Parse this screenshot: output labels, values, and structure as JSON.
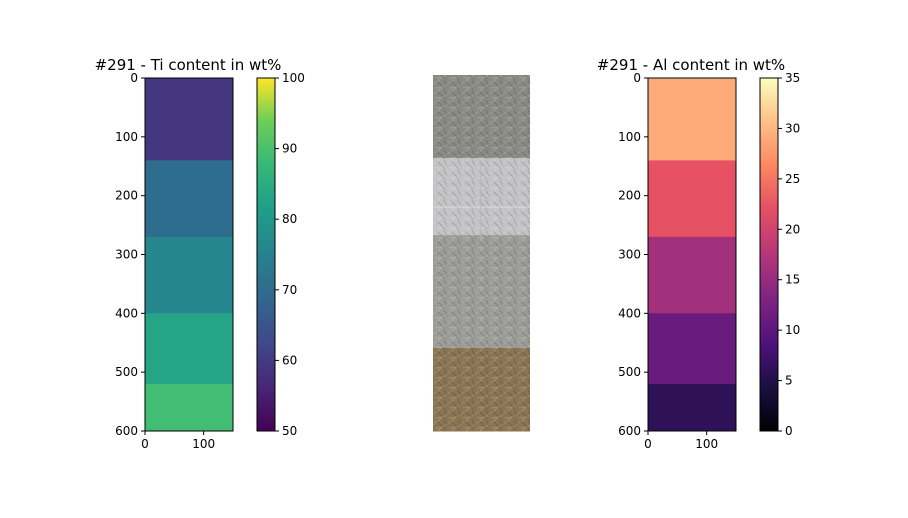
{
  "chart_data": [
    {
      "type": "heatmap",
      "title": "#291 - Ti content in wt%",
      "colormap": "viridis",
      "ylim": [
        600,
        0
      ],
      "xlim": [
        0,
        150
      ],
      "yticks": [
        "0",
        "100",
        "200",
        "300",
        "400",
        "500",
        "600"
      ],
      "xticks": [
        "0",
        "100"
      ],
      "colorbar": {
        "min": 50,
        "max": 100,
        "ticks": [
          "50",
          "60",
          "70",
          "80",
          "90",
          "100"
        ]
      },
      "bands": [
        {
          "y0": 0,
          "y1": 140,
          "value": 59
        },
        {
          "y0": 140,
          "y1": 270,
          "value": 70
        },
        {
          "y0": 270,
          "y1": 400,
          "value": 76
        },
        {
          "y0": 400,
          "y1": 520,
          "value": 83
        },
        {
          "y0": 520,
          "y1": 600,
          "value": 89
        }
      ]
    },
    {
      "type": "image",
      "title": "",
      "bands": [
        {
          "y0": 0,
          "y1": 140,
          "color": "#8a8a84"
        },
        {
          "y0": 140,
          "y1": 270,
          "color": "#c3c3c5"
        },
        {
          "y0": 270,
          "y1": 460,
          "color": "#9b9b98"
        },
        {
          "y0": 460,
          "y1": 600,
          "color": "#8a7452"
        }
      ]
    },
    {
      "type": "heatmap",
      "title": "#291 - Al content in wt%",
      "colormap": "magma",
      "ylim": [
        600,
        0
      ],
      "xlim": [
        0,
        150
      ],
      "yticks": [
        "0",
        "100",
        "200",
        "300",
        "400",
        "500",
        "600"
      ],
      "xticks": [
        "0",
        "100"
      ],
      "colorbar": {
        "min": 0,
        "max": 35,
        "ticks": [
          "0",
          "5",
          "10",
          "15",
          "20",
          "25",
          "30",
          "35"
        ]
      },
      "bands": [
        {
          "y0": 0,
          "y1": 140,
          "value": 29
        },
        {
          "y0": 140,
          "y1": 270,
          "value": 22
        },
        {
          "y0": 270,
          "y1": 400,
          "value": 16
        },
        {
          "y0": 400,
          "y1": 520,
          "value": 11
        },
        {
          "y0": 520,
          "y1": 600,
          "value": 6
        }
      ]
    }
  ]
}
